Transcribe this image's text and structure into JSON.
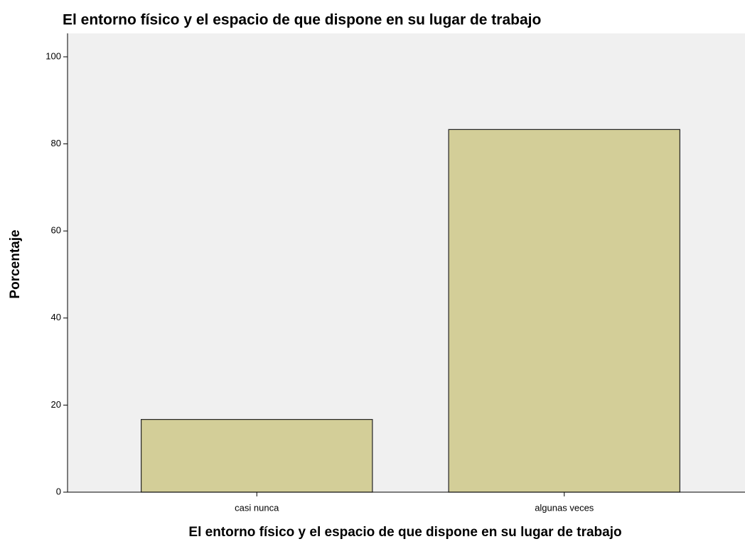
{
  "chart_data": {
    "type": "bar",
    "title": "El entorno físico y el espacio de que dispone en su lugar de trabajo",
    "x_label": "El entorno físico y el espacio de que dispone en su lugar de trabajo",
    "y_label": "Porcentaje",
    "categories": [
      "casi nunca",
      "algunas veces"
    ],
    "values": [
      16.7,
      83.3
    ],
    "color": "#d3ce98",
    "ylim": [
      0,
      100
    ],
    "yticks": [
      0,
      20,
      40,
      60,
      80,
      100
    ],
    "grid": false
  }
}
